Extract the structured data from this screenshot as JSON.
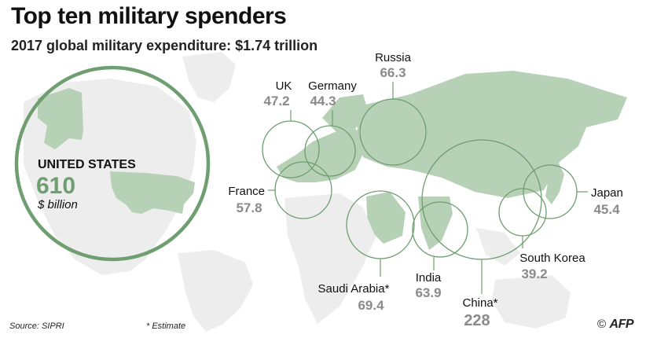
{
  "header": {
    "title": "Top ten military spenders",
    "subtitle": "2017 global military expenditure: $1.74 trillion"
  },
  "footer": {
    "source": "Source: SIPRI",
    "note": "* Estimate",
    "logo_symbol": "©",
    "logo_text": "AFP"
  },
  "colors": {
    "land_highlight": "#b7d1b7",
    "land_other": "#ededed",
    "circle_stroke": "#6f9e70",
    "value_gray": "#8a8a8a"
  },
  "featured": {
    "label": "UNITED STATES",
    "value": "610",
    "unit": "$ billion"
  },
  "chart_data": {
    "type": "bubble",
    "title": "Top ten military spenders",
    "subtitle": "2017 global military expenditure: $1.74 trillion",
    "unit": "$ billion",
    "total": "$1.74 trillion",
    "series": [
      {
        "country": "United States",
        "value": 610
      },
      {
        "country": "China*",
        "value": 228
      },
      {
        "country": "Saudi Arabia*",
        "value": 69.4
      },
      {
        "country": "Russia",
        "value": 66.3
      },
      {
        "country": "India",
        "value": 63.9
      },
      {
        "country": "France",
        "value": 57.8
      },
      {
        "country": "UK",
        "value": 47.2
      },
      {
        "country": "Japan",
        "value": 45.4
      },
      {
        "country": "Germany",
        "value": 44.3
      },
      {
        "country": "South Korea",
        "value": 39.2
      }
    ],
    "labels": {
      "russia": {
        "name": "Russia",
        "value": "66.3"
      },
      "uk": {
        "name": "UK",
        "value": "47.2"
      },
      "germany": {
        "name": "Germany",
        "value": "44.3"
      },
      "france": {
        "name": "France",
        "value": "57.8"
      },
      "japan": {
        "name": "Japan",
        "value": "45.4"
      },
      "south_korea": {
        "name": "South Korea",
        "value": "39.2"
      },
      "saudi_arabia": {
        "name": "Saudi Arabia*",
        "value": "69.4"
      },
      "india": {
        "name": "India",
        "value": "63.9"
      },
      "china": {
        "name": "China*",
        "value": "228"
      }
    }
  }
}
